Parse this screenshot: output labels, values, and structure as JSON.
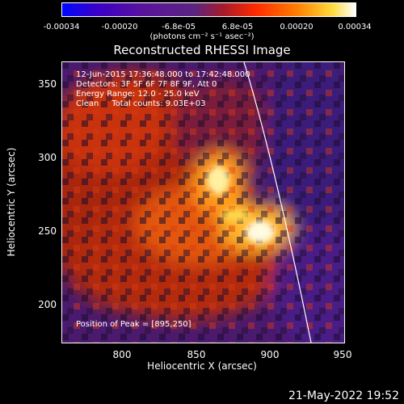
{
  "colorbar": {
    "ticks": [
      "-0.00034",
      "-0.00020",
      "-6.8e-05",
      "6.8e-05",
      "0.00020",
      "0.00034"
    ],
    "units": "(photons cm⁻² s⁻¹ asec⁻²)"
  },
  "title": "Reconstructed RHESSI Image",
  "info": {
    "line1": "12-Jun-2015 17:36:48.000 to 17:42:48.000",
    "line2": "Detectors: 3F 5F 6F 7F 8F 9F, Att 0",
    "line3": "Energy Range: 12.0 - 25.0 keV",
    "line4": "Clean     Total counts: 9.03E+03",
    "peak": "Position of Peak = [895,250]"
  },
  "axes": {
    "xlabel": "Heliocentric X (arcsec)",
    "ylabel": "Heliocentric Y (arcsec)",
    "xticks": [
      "800",
      "850",
      "900",
      "950"
    ],
    "yticks": [
      "350",
      "300",
      "250",
      "200"
    ]
  },
  "timestamp": "21-May-2022 19:52"
}
